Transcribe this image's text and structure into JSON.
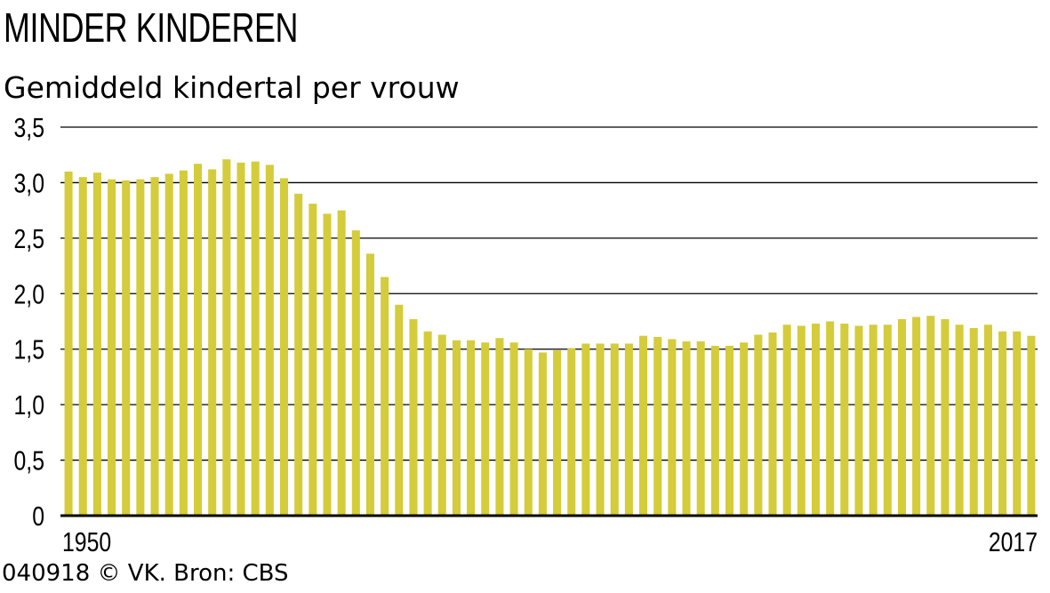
{
  "header": {
    "title": "MINDER KINDEREN",
    "subtitle": "Gemiddeld kindertal per vrouw"
  },
  "footer": {
    "source": "040918 © VK. Bron: CBS"
  },
  "colors": {
    "bar": "#d4cc3a",
    "grid": "#000000",
    "axis": "#000000"
  },
  "chart_data": {
    "type": "bar",
    "title": "MINDER KINDEREN",
    "subtitle": "Gemiddeld kindertal per vrouw",
    "x_start": 1950,
    "x_end": 2017,
    "x_tick_labels": [
      "1950",
      "2017"
    ],
    "y_tick_labels": [
      "0",
      "0,5",
      "1,0",
      "1,5",
      "2,0",
      "2,5",
      "3,0",
      "3,5"
    ],
    "ylim": [
      0,
      3.5
    ],
    "grid": true,
    "values": [
      3.1,
      3.05,
      3.09,
      3.03,
      3.02,
      3.03,
      3.05,
      3.08,
      3.11,
      3.17,
      3.12,
      3.21,
      3.18,
      3.19,
      3.16,
      3.04,
      2.9,
      2.81,
      2.72,
      2.75,
      2.57,
      2.36,
      2.15,
      1.9,
      1.77,
      1.66,
      1.63,
      1.58,
      1.58,
      1.56,
      1.6,
      1.56,
      1.5,
      1.47,
      1.49,
      1.51,
      1.55,
      1.55,
      1.55,
      1.55,
      1.62,
      1.61,
      1.59,
      1.57,
      1.57,
      1.53,
      1.53,
      1.56,
      1.63,
      1.65,
      1.72,
      1.71,
      1.73,
      1.75,
      1.73,
      1.71,
      1.72,
      1.72,
      1.77,
      1.79,
      1.8,
      1.77,
      1.72,
      1.69,
      1.72,
      1.66,
      1.66,
      1.62
    ]
  }
}
